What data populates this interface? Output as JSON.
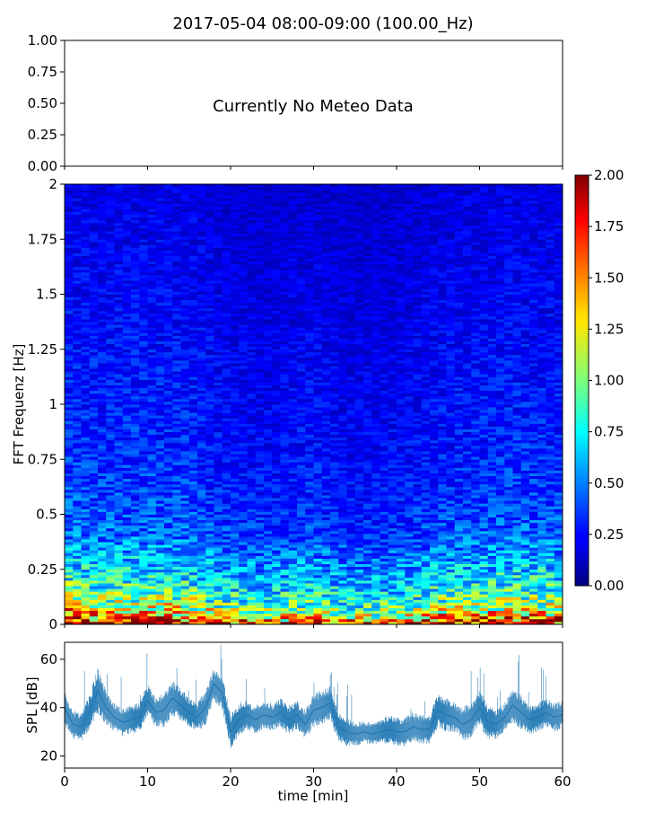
{
  "chart_data": [
    {
      "type": "line",
      "title": "2017-05-04 08:00-09:00 (100.00_Hz)",
      "note": "Currently No Meteo Data",
      "ylim": [
        0,
        1
      ],
      "yticks": [
        "1.00",
        "0.75",
        "0.50",
        "0.25",
        "0.00"
      ],
      "series": []
    },
    {
      "type": "heatmap",
      "xlabel": "",
      "ylabel": "FFT Frequenz [Hz]",
      "xlim": [
        0,
        60
      ],
      "ylim": [
        0,
        2
      ],
      "yticks": [
        "2",
        "1.75",
        "1.5",
        "1.25",
        "1",
        "0.75",
        "0.5",
        "0.25",
        "0"
      ],
      "colormap": "jet",
      "colorbar": {
        "range": [
          0,
          2
        ],
        "ticks": [
          "2.00",
          "1.75",
          "1.50",
          "1.25",
          "1.00",
          "0.75",
          "0.50",
          "0.25",
          "0.00"
        ]
      },
      "profile": {
        "freq": [
          0,
          0.02,
          0.05,
          0.1,
          0.2,
          0.3,
          0.4,
          0.5,
          0.75,
          1.0,
          1.5,
          2.0
        ],
        "typical_amplitude": [
          1.9,
          1.6,
          1.2,
          0.95,
          0.7,
          0.55,
          0.42,
          0.36,
          0.3,
          0.27,
          0.22,
          0.18
        ]
      },
      "time_modulation": {
        "time": [
          0,
          5,
          10,
          15,
          20,
          25,
          30,
          35,
          40,
          45,
          50,
          55,
          60
        ],
        "factor": [
          1.2,
          1.1,
          1.15,
          1.1,
          0.9,
          0.85,
          0.95,
          0.8,
          0.85,
          1.0,
          1.05,
          1.1,
          1.05
        ]
      }
    },
    {
      "type": "line",
      "xlabel": "time [min]",
      "ylabel": "SPL [dB]",
      "xlim": [
        0,
        60
      ],
      "ylim": [
        15,
        67
      ],
      "xticks": [
        "0",
        "10",
        "20",
        "30",
        "40",
        "50",
        "60"
      ],
      "yticks": [
        "60",
        "40",
        "20"
      ],
      "color": "#1f77b4",
      "series": [
        {
          "x": [
            0,
            1,
            2,
            3,
            4,
            5,
            6,
            7,
            8,
            9,
            10,
            11,
            12,
            13,
            14,
            15,
            16,
            17,
            18,
            19,
            20,
            21,
            22,
            23,
            24,
            25,
            26,
            27,
            28,
            29,
            30,
            31,
            32,
            33,
            34,
            35,
            36,
            37,
            38,
            39,
            40,
            41,
            42,
            43,
            44,
            45,
            46,
            47,
            48,
            49,
            50,
            51,
            52,
            53,
            54,
            55,
            56,
            57,
            58,
            59,
            60
          ],
          "y": [
            40,
            33,
            32,
            38,
            47,
            40,
            36,
            34,
            35,
            36,
            43,
            38,
            39,
            44,
            41,
            38,
            36,
            40,
            50,
            46,
            30,
            35,
            37,
            35,
            37,
            36,
            38,
            35,
            37,
            33,
            39,
            40,
            42,
            32,
            30,
            29,
            30,
            29,
            30,
            31,
            30,
            30,
            32,
            31,
            31,
            39,
            37,
            36,
            33,
            35,
            40,
            34,
            33,
            36,
            41,
            38,
            35,
            36,
            38,
            36,
            37
          ],
          "spread": [
            6,
            5,
            5,
            6,
            8,
            6,
            5,
            5,
            5,
            5,
            6,
            5,
            6,
            6,
            6,
            5,
            5,
            6,
            6,
            6,
            6,
            6,
            5,
            5,
            5,
            5,
            5,
            5,
            5,
            5,
            6,
            6,
            6,
            5,
            5,
            4,
            4,
            4,
            4,
            5,
            5,
            5,
            5,
            5,
            5,
            6,
            6,
            5,
            6,
            6,
            6,
            6,
            5,
            5,
            6,
            6,
            5,
            5,
            5,
            5,
            5
          ]
        }
      ]
    }
  ]
}
